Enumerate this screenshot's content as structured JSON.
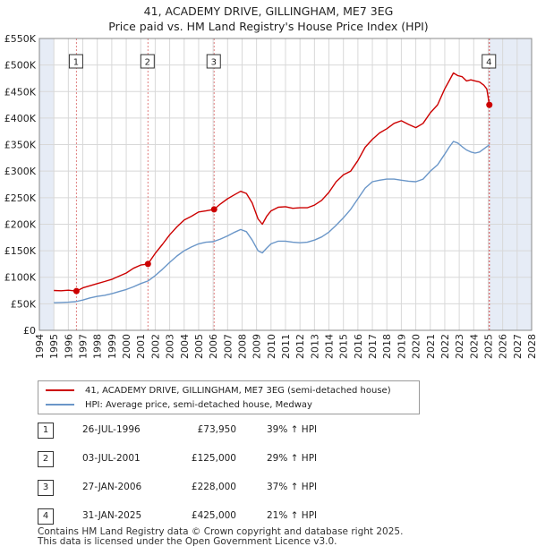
{
  "title_line1": "41, ACADEMY DRIVE, GILLINGHAM, ME7 3EG",
  "title_line2": "Price paid vs. HM Land Registry's House Price Index (HPI)",
  "legend": {
    "red_label": "41, ACADEMY DRIVE, GILLINGHAM, ME7 3EG (semi-detached house)",
    "blue_label": "HPI: Average price, semi-detached house, Medway"
  },
  "colors": {
    "red": "#cc0000",
    "blue": "#6a96c8",
    "grid": "#d8d8d8",
    "shade": "#e6ecf6",
    "vline": "#e08080"
  },
  "sales": [
    {
      "num": "1",
      "date": "26-JUL-1996",
      "price": "£73,950",
      "hpi": "39% ↑ HPI"
    },
    {
      "num": "2",
      "date": "03-JUL-2001",
      "price": "£125,000",
      "hpi": "29% ↑ HPI"
    },
    {
      "num": "3",
      "date": "27-JAN-2006",
      "price": "£228,000",
      "hpi": "37% ↑ HPI"
    },
    {
      "num": "4",
      "date": "31-JAN-2025",
      "price": "£425,000",
      "hpi": "21% ↑ HPI"
    }
  ],
  "footer_line1": "Contains HM Land Registry data © Crown copyright and database right 2025.",
  "footer_line2": "This data is licensed under the Open Government Licence v3.0.",
  "chart_data": {
    "type": "line",
    "title": "41, ACADEMY DRIVE, GILLINGHAM, ME7 3EG",
    "subtitle": "Price paid vs. HM Land Registry's House Price Index (HPI)",
    "xlabel": "",
    "ylabel": "",
    "xlim": [
      1994,
      2028
    ],
    "ylim": [
      0,
      550000
    ],
    "y_ticks": [
      0,
      50000,
      100000,
      150000,
      200000,
      250000,
      300000,
      350000,
      400000,
      450000,
      500000,
      550000
    ],
    "y_tick_labels": [
      "£0",
      "£50K",
      "£100K",
      "£150K",
      "£200K",
      "£250K",
      "£300K",
      "£350K",
      "£400K",
      "£450K",
      "£500K",
      "£550K"
    ],
    "x_ticks": [
      1994,
      1995,
      1996,
      1997,
      1998,
      1999,
      2000,
      2001,
      2002,
      2003,
      2004,
      2005,
      2006,
      2007,
      2008,
      2009,
      2010,
      2011,
      2012,
      2013,
      2014,
      2015,
      2016,
      2017,
      2018,
      2019,
      2020,
      2021,
      2022,
      2023,
      2024,
      2025,
      2026,
      2027,
      2028
    ],
    "x_tick_labels": [
      "1994",
      "1995",
      "1996",
      "1997",
      "1998",
      "1999",
      "2000",
      "2001",
      "2002",
      "2003",
      "2004",
      "2005",
      "2006",
      "2007",
      "2008",
      "2009",
      "2010",
      "2011",
      "2012",
      "2013",
      "2014",
      "2015",
      "2016",
      "2017",
      "2018",
      "2019",
      "2020",
      "2021",
      "2022",
      "2023",
      "2024",
      "2025",
      "2026",
      "2027",
      "2028"
    ],
    "grid": true,
    "shaded_regions": [
      [
        1994,
        1995
      ],
      [
        2025.08,
        2028
      ]
    ],
    "series": [
      {
        "name": "41, ACADEMY DRIVE, GILLINGHAM, ME7 3EG (semi-detached house)",
        "color": "#cc0000",
        "x": [
          1995,
          1995.5,
          1996,
          1996.56,
          1997,
          1997.5,
          1998,
          1998.5,
          1999,
          1999.5,
          2000,
          2000.5,
          2001,
          2001.5,
          2002,
          2002.5,
          2003,
          2003.5,
          2004,
          2004.5,
          2005,
          2005.5,
          2006.07,
          2006.5,
          2007,
          2007.5,
          2007.9,
          2008.3,
          2008.7,
          2009.1,
          2009.4,
          2009.7,
          2010,
          2010.5,
          2011,
          2011.5,
          2012,
          2012.5,
          2013,
          2013.5,
          2014,
          2014.5,
          2015,
          2015.5,
          2016,
          2016.5,
          2017,
          2017.5,
          2018,
          2018.5,
          2019,
          2019.5,
          2020,
          2020.5,
          2021,
          2021.5,
          2022,
          2022.3,
          2022.6,
          2022.9,
          2023.2,
          2023.5,
          2023.8,
          2024.1,
          2024.4,
          2024.7,
          2024.9,
          2025.08
        ],
        "y": [
          75000,
          74500,
          75500,
          73950,
          80000,
          84000,
          88000,
          92000,
          96000,
          102000,
          108000,
          117000,
          123000,
          125000,
          145000,
          162000,
          180000,
          195000,
          208000,
          215000,
          223000,
          225000,
          228000,
          238000,
          248000,
          256000,
          262000,
          258000,
          240000,
          210000,
          200000,
          215000,
          225000,
          232000,
          233000,
          230000,
          231000,
          231000,
          236000,
          245000,
          260000,
          280000,
          293000,
          300000,
          320000,
          345000,
          360000,
          372000,
          380000,
          390000,
          395000,
          388000,
          382000,
          390000,
          410000,
          425000,
          455000,
          470000,
          485000,
          480000,
          478000,
          470000,
          472000,
          470000,
          468000,
          462000,
          455000,
          425000
        ]
      },
      {
        "name": "HPI: Average price, semi-detached house, Medway",
        "color": "#6a96c8",
        "x": [
          1995,
          1995.5,
          1996,
          1996.5,
          1997,
          1997.5,
          1998,
          1998.5,
          1999,
          1999.5,
          2000,
          2000.5,
          2001,
          2001.5,
          2002,
          2002.5,
          2003,
          2003.5,
          2004,
          2004.5,
          2005,
          2005.5,
          2006,
          2006.5,
          2007,
          2007.5,
          2007.9,
          2008.3,
          2008.7,
          2009.1,
          2009.4,
          2009.7,
          2010,
          2010.5,
          2011,
          2011.5,
          2012,
          2012.5,
          2013,
          2013.5,
          2014,
          2014.5,
          2015,
          2015.5,
          2016,
          2016.5,
          2017,
          2017.5,
          2018,
          2018.5,
          2019,
          2019.5,
          2020,
          2020.5,
          2021,
          2021.5,
          2022,
          2022.3,
          2022.6,
          2022.9,
          2023.2,
          2023.5,
          2023.8,
          2024.1,
          2024.4,
          2024.7,
          2025,
          2025.08
        ],
        "y": [
          52000,
          52500,
          53000,
          54000,
          57000,
          61000,
          64000,
          66000,
          69000,
          73000,
          77000,
          82000,
          88000,
          93000,
          103000,
          115000,
          128000,
          140000,
          150000,
          157000,
          163000,
          166000,
          167000,
          172000,
          178000,
          185000,
          190000,
          186000,
          170000,
          150000,
          146000,
          155000,
          163000,
          168000,
          168000,
          166000,
          165000,
          166000,
          170000,
          176000,
          185000,
          198000,
          212000,
          228000,
          248000,
          268000,
          280000,
          283000,
          285000,
          285000,
          283000,
          281000,
          280000,
          285000,
          300000,
          312000,
          332000,
          345000,
          356000,
          353000,
          346000,
          340000,
          336000,
          334000,
          336000,
          342000,
          348000,
          350000
        ]
      }
    ],
    "sale_markers": [
      {
        "label": "1",
        "x": 1996.56,
        "y": 73950
      },
      {
        "label": "2",
        "x": 2001.5,
        "y": 125000
      },
      {
        "label": "3",
        "x": 2006.07,
        "y": 228000
      },
      {
        "label": "4",
        "x": 2025.08,
        "y": 425000
      }
    ]
  }
}
